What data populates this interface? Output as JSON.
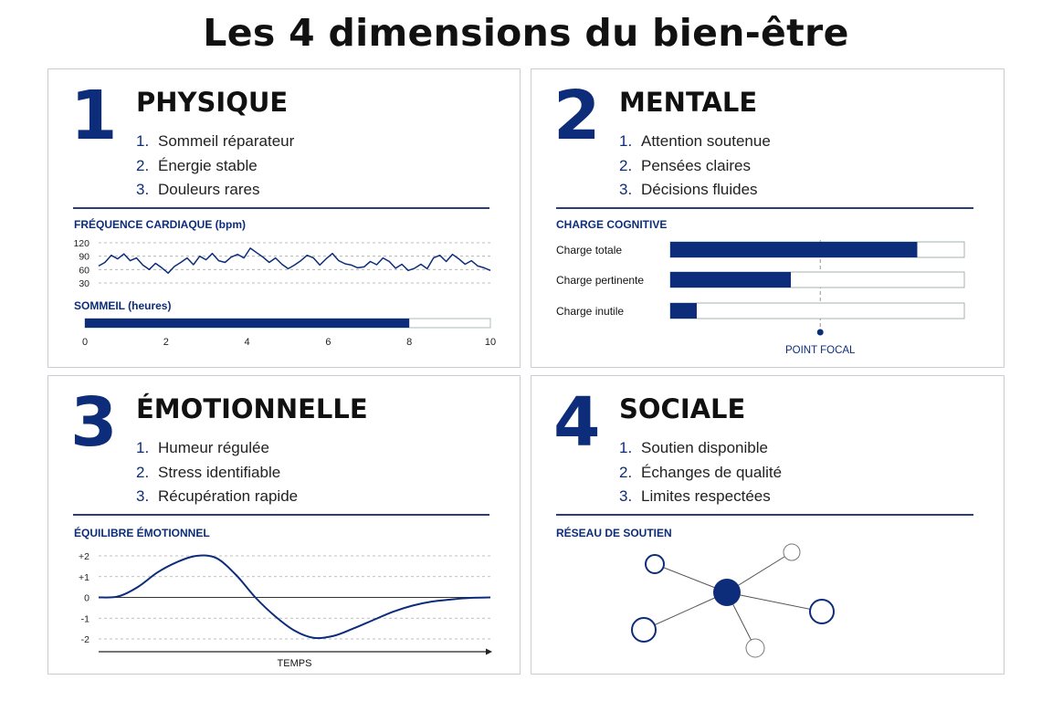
{
  "title": "Les 4 dimensions du bien-être",
  "colors": {
    "accent": "#0d2d7a",
    "border": "#c9ccd3",
    "text": "#111111"
  },
  "panels": [
    {
      "number": "1",
      "heading": "PHYSIQUE",
      "items": [
        {
          "n": "1.",
          "label": "Sommeil réparateur"
        },
        {
          "n": "2.",
          "label": "Énergie stable"
        },
        {
          "n": "3.",
          "label": "Douleurs rares"
        }
      ],
      "heart_label": "FRÉQUENCE CARDIAQUE (bpm)",
      "heart_ticks": [
        "120",
        "90",
        "60",
        "30"
      ],
      "sleep_label": "SOMMEIL (heures)",
      "sleep_ticks": [
        "0",
        "2",
        "4",
        "6",
        "8",
        "10"
      ]
    },
    {
      "number": "2",
      "heading": "MENTALE",
      "items": [
        {
          "n": "1.",
          "label": "Attention soutenue"
        },
        {
          "n": "2.",
          "label": "Pensées claires"
        },
        {
          "n": "3.",
          "label": "Décisions fluides"
        }
      ],
      "chart_label": "CHARGE COGNITIVE",
      "bars": [
        {
          "label": "Charge totale"
        },
        {
          "label": "Charge pertinente"
        },
        {
          "label": "Charge inutile"
        }
      ],
      "focal_label": "POINT FOCAL"
    },
    {
      "number": "3",
      "heading": "ÉMOTIONNELLE",
      "items": [
        {
          "n": "1.",
          "label": "Humeur régulée"
        },
        {
          "n": "2.",
          "label": "Stress identifiable"
        },
        {
          "n": "3.",
          "label": "Récupération rapide"
        }
      ],
      "chart_label": "ÉQUILIBRE ÉMOTIONNEL",
      "yticks": [
        "+2",
        "+1",
        "0",
        "-1",
        "-2"
      ],
      "xlabel": "TEMPS"
    },
    {
      "number": "4",
      "heading": "SOCIALE",
      "items": [
        {
          "n": "1.",
          "label": "Soutien disponible"
        },
        {
          "n": "2.",
          "label": "Échanges de qualité"
        },
        {
          "n": "3.",
          "label": "Limites respectées"
        }
      ],
      "chart_label": "RÉSEAU DE SOUTIEN"
    }
  ],
  "chart_data": [
    {
      "type": "line",
      "title": "FRÉQUENCE CARDIAQUE (bpm)",
      "ylim": [
        30,
        120
      ],
      "yticks": [
        120,
        90,
        60,
        30
      ],
      "series": [
        {
          "values": [
            68,
            76,
            92,
            84,
            95,
            80,
            86,
            70,
            60,
            74,
            64,
            52,
            67,
            76,
            86,
            71,
            90,
            82,
            96,
            80,
            76,
            88,
            94,
            86,
            108,
            98,
            88,
            76,
            86,
            72,
            62,
            70,
            80,
            92,
            86,
            70,
            84,
            96,
            80,
            73,
            70,
            64,
            66,
            78,
            71,
            86,
            78,
            63,
            72,
            58,
            63,
            72,
            62,
            86,
            92,
            78,
            94,
            84,
            72,
            80,
            68,
            64,
            58
          ]
        }
      ]
    },
    {
      "type": "bar",
      "title": "SOMMEIL (heures)",
      "xlim": [
        0,
        10
      ],
      "xticks": [
        0,
        2,
        4,
        6,
        8,
        10
      ],
      "values": [
        8
      ]
    },
    {
      "type": "bar",
      "title": "CHARGE COGNITIVE",
      "categories": [
        "Charge totale",
        "Charge pertinente",
        "Charge inutile"
      ],
      "values": [
        84,
        41,
        9
      ],
      "xlim": [
        0,
        100
      ],
      "focal_value": 51,
      "annotation": "POINT FOCAL"
    },
    {
      "type": "line",
      "title": "ÉQUILIBRE ÉMOTIONNEL",
      "xlabel": "TEMPS",
      "ylim": [
        -2,
        2
      ],
      "yticks": [
        2,
        1,
        0,
        -1,
        -2
      ],
      "series": [
        {
          "x": [
            0,
            5,
            10,
            15,
            20,
            25,
            30,
            35,
            40,
            45,
            50,
            55,
            60,
            65,
            70,
            75,
            80,
            85,
            90,
            95,
            100
          ],
          "values": [
            0,
            0.05,
            0.5,
            1.2,
            1.7,
            2.0,
            1.9,
            1.1,
            0,
            -0.9,
            -1.6,
            -1.95,
            -1.85,
            -1.5,
            -1.1,
            -0.7,
            -0.4,
            -0.2,
            -0.1,
            -0.02,
            0
          ]
        }
      ]
    }
  ]
}
